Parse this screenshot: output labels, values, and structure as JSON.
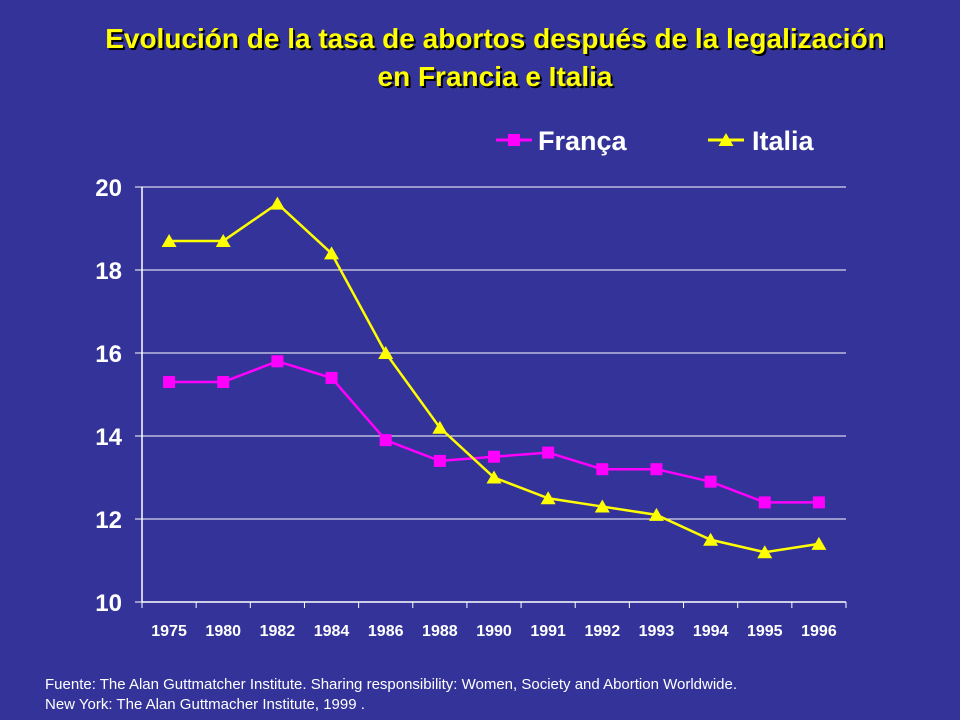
{
  "title": {
    "line1": "Evolución de la tasa de abortos después de la legalización",
    "line2": "en Francia e Italia"
  },
  "colors": {
    "background": "#333399",
    "title": "#FFFF00",
    "axis": "#FFFFFF",
    "francia": "#FF00FF",
    "italia": "#FFFF00"
  },
  "chart_data": {
    "type": "line",
    "categories": [
      "1975",
      "1980",
      "1982",
      "1984",
      "1986",
      "1988",
      "1990",
      "1991",
      "1992",
      "1993",
      "1994",
      "1995",
      "1996"
    ],
    "series": [
      {
        "name": "França",
        "marker": "square",
        "values": [
          15.3,
          15.3,
          15.8,
          15.4,
          13.9,
          13.4,
          13.5,
          13.6,
          13.2,
          13.2,
          12.9,
          12.4,
          12.4
        ]
      },
      {
        "name": "Italia",
        "marker": "triangle",
        "values": [
          18.7,
          18.7,
          19.6,
          18.4,
          16.0,
          14.2,
          13.0,
          12.5,
          12.3,
          12.1,
          11.5,
          11.2,
          11.4
        ]
      }
    ],
    "yticks": [
      "10",
      "12",
      "14",
      "16",
      "18",
      "20"
    ],
    "ylim": [
      10,
      20
    ],
    "grid": true,
    "legend": "top-right"
  },
  "footer": {
    "line1": "Fuente: The Alan Guttmatcher Institute. Sharing responsibility: Women, Society and Abortion Worldwide.",
    "line2": "New York: The Alan Guttmacher Institute, 1999 ."
  }
}
